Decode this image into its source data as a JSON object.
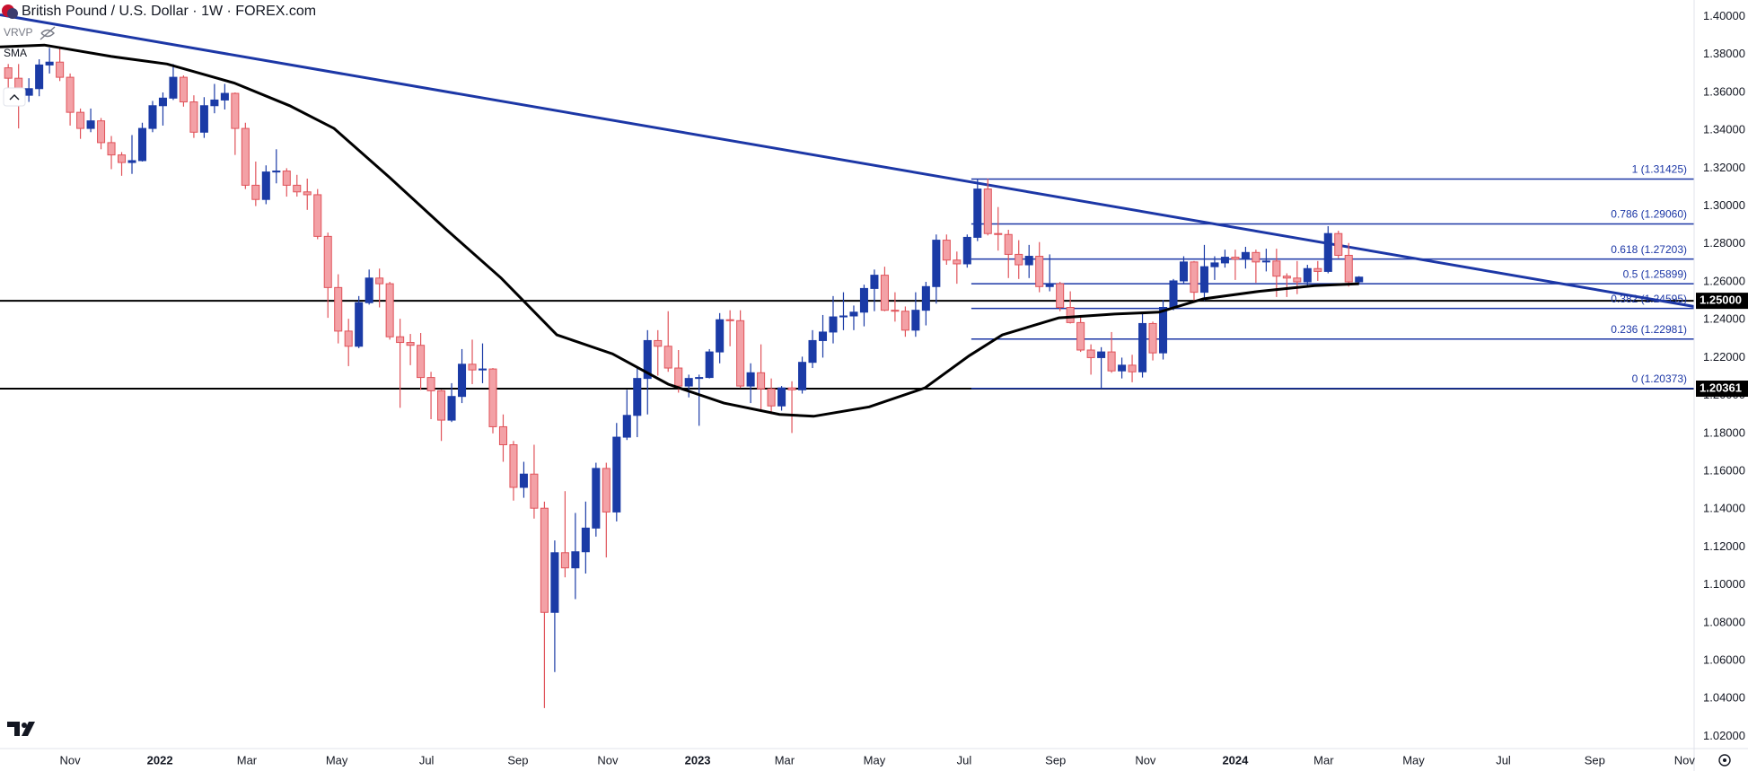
{
  "chart_data": {
    "type": "candlestick",
    "title": "British Pound / U.S. Dollar · 1W · FOREX.com",
    "vrvp_label": "VRVP",
    "up_color": "#1b3ba6",
    "down_color": "#f3a1a6",
    "down_border": "#e0535a",
    "candles": [
      [
        1.373,
        1.375,
        1.361,
        1.3675
      ],
      [
        1.3675,
        1.375,
        1.341,
        1.3585
      ],
      [
        1.3585,
        1.3675,
        1.355,
        1.362
      ],
      [
        1.362,
        1.3775,
        1.358,
        1.3745
      ],
      [
        1.3745,
        1.3835,
        1.37,
        1.376
      ],
      [
        1.376,
        1.383,
        1.366,
        1.368
      ],
      [
        1.368,
        1.37,
        1.3425,
        1.3495
      ],
      [
        1.3495,
        1.3515,
        1.3355,
        1.341
      ],
      [
        1.341,
        1.3515,
        1.339,
        1.345
      ],
      [
        1.345,
        1.3465,
        1.33,
        1.3335
      ],
      [
        1.3335,
        1.337,
        1.3195,
        1.327
      ],
      [
        1.327,
        1.3285,
        1.316,
        1.323
      ],
      [
        1.323,
        1.3375,
        1.317,
        1.324
      ],
      [
        1.324,
        1.344,
        1.3235,
        1.341
      ],
      [
        1.341,
        1.3555,
        1.339,
        1.353
      ],
      [
        1.353,
        1.36,
        1.3425,
        1.357
      ],
      [
        1.357,
        1.375,
        1.356,
        1.368
      ],
      [
        1.368,
        1.369,
        1.3525,
        1.355
      ],
      [
        1.355,
        1.3585,
        1.336,
        1.339
      ],
      [
        1.339,
        1.3575,
        1.336,
        1.353
      ],
      [
        1.353,
        1.3645,
        1.349,
        1.356
      ],
      [
        1.356,
        1.3645,
        1.351,
        1.3595
      ],
      [
        1.3595,
        1.36,
        1.327,
        1.341
      ],
      [
        1.341,
        1.344,
        1.309,
        1.311
      ],
      [
        1.311,
        1.3235,
        1.3,
        1.3035
      ],
      [
        1.3035,
        1.3215,
        1.301,
        1.318
      ],
      [
        1.318,
        1.33,
        1.312,
        1.3185
      ],
      [
        1.3185,
        1.32,
        1.305,
        1.311
      ],
      [
        1.311,
        1.3165,
        1.305,
        1.3075
      ],
      [
        1.3075,
        1.3145,
        1.298,
        1.306
      ],
      [
        1.306,
        1.309,
        1.2825,
        1.284
      ],
      [
        1.284,
        1.286,
        1.241,
        1.257
      ],
      [
        1.257,
        1.264,
        1.2275,
        1.234
      ],
      [
        1.234,
        1.2405,
        1.2155,
        1.226
      ],
      [
        1.226,
        1.2525,
        1.225,
        1.249
      ],
      [
        1.249,
        1.2665,
        1.248,
        1.262
      ],
      [
        1.262,
        1.267,
        1.2465,
        1.259
      ],
      [
        1.259,
        1.26,
        1.2295,
        1.231
      ],
      [
        1.231,
        1.2405,
        1.1935,
        1.228
      ],
      [
        1.228,
        1.2325,
        1.216,
        1.2265
      ],
      [
        1.2265,
        1.233,
        1.203,
        1.2095
      ],
      [
        1.2095,
        1.2125,
        1.1875,
        1.2025
      ],
      [
        1.2025,
        1.203,
        1.176,
        1.187
      ],
      [
        1.187,
        1.2065,
        1.186,
        1.1995
      ],
      [
        1.1995,
        1.2245,
        1.196,
        1.2165
      ],
      [
        1.2165,
        1.2295,
        1.206,
        1.2135
      ],
      [
        1.2135,
        1.2275,
        1.2065,
        1.214
      ],
      [
        1.214,
        1.2145,
        1.18,
        1.1835
      ],
      [
        1.1835,
        1.19,
        1.165,
        1.174
      ],
      [
        1.174,
        1.176,
        1.1445,
        1.1515
      ],
      [
        1.1515,
        1.165,
        1.146,
        1.1585
      ],
      [
        1.1585,
        1.174,
        1.135,
        1.1405
      ],
      [
        1.1405,
        1.144,
        1.035,
        1.0855
      ],
      [
        1.0855,
        1.1235,
        1.054,
        1.117
      ],
      [
        1.117,
        1.1495,
        1.104,
        1.109
      ],
      [
        1.109,
        1.138,
        1.0925,
        1.1175
      ],
      [
        1.1175,
        1.144,
        1.106,
        1.13
      ],
      [
        1.13,
        1.1645,
        1.1255,
        1.1615
      ],
      [
        1.1615,
        1.1645,
        1.1145,
        1.1385
      ],
      [
        1.1385,
        1.1855,
        1.1335,
        1.178
      ],
      [
        1.178,
        1.203,
        1.1765,
        1.1895
      ],
      [
        1.1895,
        1.2155,
        1.178,
        1.209
      ],
      [
        1.209,
        1.2345,
        1.19,
        1.229
      ],
      [
        1.229,
        1.2345,
        1.2105,
        1.226
      ],
      [
        1.226,
        1.2445,
        1.2125,
        1.2145
      ],
      [
        1.2145,
        1.224,
        1.2015,
        1.205
      ],
      [
        1.205,
        1.211,
        1.199,
        1.209
      ],
      [
        1.209,
        1.211,
        1.184,
        1.2095
      ],
      [
        1.2095,
        1.2245,
        1.209,
        1.223
      ],
      [
        1.223,
        1.2435,
        1.217,
        1.24
      ],
      [
        1.24,
        1.245,
        1.226,
        1.2395
      ],
      [
        1.2395,
        1.245,
        1.204,
        1.205
      ],
      [
        1.205,
        1.217,
        1.196,
        1.212
      ],
      [
        1.212,
        1.227,
        1.1915,
        1.2035
      ],
      [
        1.2035,
        1.209,
        1.1915,
        1.1945
      ],
      [
        1.1945,
        1.205,
        1.192,
        1.204
      ],
      [
        1.204,
        1.2075,
        1.1802,
        1.203
      ],
      [
        1.203,
        1.2205,
        1.201,
        1.2175
      ],
      [
        1.2175,
        1.2345,
        1.2145,
        1.229
      ],
      [
        1.229,
        1.2425,
        1.22,
        1.2335
      ],
      [
        1.2335,
        1.2525,
        1.2275,
        1.2415
      ],
      [
        1.2415,
        1.2545,
        1.2345,
        1.242
      ],
      [
        1.242,
        1.2475,
        1.2345,
        1.244
      ],
      [
        1.244,
        1.2585,
        1.2365,
        1.2565
      ],
      [
        1.2565,
        1.2665,
        1.2445,
        1.2635
      ],
      [
        1.2635,
        1.268,
        1.2445,
        1.245
      ],
      [
        1.245,
        1.2545,
        1.239,
        1.2445
      ],
      [
        1.2445,
        1.247,
        1.231,
        1.2345
      ],
      [
        1.2345,
        1.2545,
        1.231,
        1.245
      ],
      [
        1.245,
        1.26,
        1.237,
        1.2575
      ],
      [
        1.2575,
        1.285,
        1.2485,
        1.282
      ],
      [
        1.282,
        1.285,
        1.269,
        1.2715
      ],
      [
        1.2715,
        1.276,
        1.259,
        1.2695
      ],
      [
        1.2695,
        1.285,
        1.2675,
        1.2835
      ],
      [
        1.2835,
        1.3142,
        1.2815,
        1.309
      ],
      [
        1.309,
        1.3145,
        1.2845,
        1.2855
      ],
      [
        1.2855,
        1.2995,
        1.2765,
        1.285
      ],
      [
        1.285,
        1.2875,
        1.262,
        1.2745
      ],
      [
        1.2745,
        1.282,
        1.2615,
        1.269
      ],
      [
        1.269,
        1.2795,
        1.262,
        1.2735
      ],
      [
        1.2735,
        1.281,
        1.2545,
        1.2575
      ],
      [
        1.2575,
        1.2745,
        1.255,
        1.259
      ],
      [
        1.259,
        1.26,
        1.2445,
        1.2465
      ],
      [
        1.2465,
        1.255,
        1.238,
        1.2385
      ],
      [
        1.2385,
        1.2425,
        1.223,
        1.224
      ],
      [
        1.224,
        1.227,
        1.211,
        1.22
      ],
      [
        1.22,
        1.2255,
        1.2037,
        1.223
      ],
      [
        1.223,
        1.2335,
        1.212,
        1.213
      ],
      [
        1.213,
        1.22,
        1.209,
        1.216
      ],
      [
        1.216,
        1.2215,
        1.207,
        1.2125
      ],
      [
        1.2125,
        1.243,
        1.2095,
        1.238
      ],
      [
        1.238,
        1.239,
        1.2185,
        1.2225
      ],
      [
        1.2225,
        1.2505,
        1.219,
        1.2465
      ],
      [
        1.2465,
        1.2615,
        1.245,
        1.2605
      ],
      [
        1.2605,
        1.2735,
        1.259,
        1.2705
      ],
      [
        1.2705,
        1.271,
        1.25,
        1.2545
      ],
      [
        1.2545,
        1.2795,
        1.25,
        1.268
      ],
      [
        1.268,
        1.2735,
        1.261,
        1.27
      ],
      [
        1.27,
        1.277,
        1.2675,
        1.273
      ],
      [
        1.273,
        1.277,
        1.261,
        1.272
      ],
      [
        1.272,
        1.2785,
        1.267,
        1.2755
      ],
      [
        1.2755,
        1.277,
        1.2595,
        1.2705
      ],
      [
        1.2705,
        1.2775,
        1.2655,
        1.271
      ],
      [
        1.271,
        1.2775,
        1.252,
        1.263
      ],
      [
        1.263,
        1.2645,
        1.252,
        1.262
      ],
      [
        1.262,
        1.271,
        1.2535,
        1.26
      ],
      [
        1.26,
        1.269,
        1.2575,
        1.267
      ],
      [
        1.267,
        1.271,
        1.2605,
        1.2655
      ],
      [
        1.2655,
        1.2894,
        1.2645,
        1.2855
      ],
      [
        1.2855,
        1.287,
        1.2725,
        1.274
      ],
      [
        1.274,
        1.2805,
        1.2575,
        1.26
      ],
      [
        1.26,
        1.263,
        1.259,
        1.2625
      ]
    ],
    "sma": {
      "name": "SMA",
      "color": "#000000",
      "x": [
        -0.8,
        3.5,
        10.0,
        15.4,
        21.9,
        27.3,
        31.6,
        37.0,
        42.4,
        47.8,
        53.2,
        58.6,
        64.0,
        69.4,
        74.8,
        78.1,
        83.5,
        88.9,
        93.2,
        96.4,
        101.9,
        107.3,
        111.6,
        115.9,
        121.3,
        126.7,
        131.0
      ],
      "values": [
        1.384,
        1.385,
        1.379,
        1.375,
        1.365,
        1.353,
        1.341,
        1.315,
        1.288,
        1.262,
        1.232,
        1.222,
        1.206,
        1.196,
        1.19,
        1.189,
        1.194,
        1.204,
        1.221,
        1.232,
        1.241,
        1.243,
        1.244,
        1.251,
        1.255,
        1.258,
        1.259
      ]
    },
    "trendline": {
      "color": "#1c37a6",
      "x": [
        -0.8,
        163.5
      ],
      "values": [
        1.401,
        1.247
      ]
    },
    "fib_color": "#1c37a6",
    "fib_start_x": 93.4,
    "fib_levels": [
      {
        "value": 1.31425,
        "label": "1 (1.31425)"
      },
      {
        "value": 1.2906,
        "label": "0.786 (1.29060)"
      },
      {
        "value": 1.27203,
        "label": "0.618 (1.27203)"
      },
      {
        "value": 1.25899,
        "label": "0.5 (1.25899)"
      },
      {
        "value": 1.24595,
        "label": "0.382 (1.24595)"
      },
      {
        "value": 1.22981,
        "label": "0.236 (1.22981)"
      },
      {
        "value": 1.20373,
        "label": "0 (1.20373)"
      }
    ],
    "hlines": [
      {
        "value": 1.25,
        "label": "1.25000"
      },
      {
        "value": 1.20361,
        "label": "1.20361"
      }
    ],
    "xlim": [
      -0.8,
      163.5
    ],
    "ylim": [
      1.0136,
      1.4088
    ],
    "xticks": [
      {
        "value": 6.0,
        "label": "Nov"
      },
      {
        "value": 14.71,
        "label": "2022"
      },
      {
        "value": 23.14,
        "label": "Mar"
      },
      {
        "value": 31.86,
        "label": "May"
      },
      {
        "value": 40.57,
        "label": "Jul"
      },
      {
        "value": 49.43,
        "label": "Sep"
      },
      {
        "value": 58.14,
        "label": "Nov"
      },
      {
        "value": 66.86,
        "label": "2023"
      },
      {
        "value": 75.29,
        "label": "Mar"
      },
      {
        "value": 84.0,
        "label": "May"
      },
      {
        "value": 92.71,
        "label": "Jul"
      },
      {
        "value": 101.57,
        "label": "Sep"
      },
      {
        "value": 110.29,
        "label": "Nov"
      },
      {
        "value": 119.0,
        "label": "2024"
      },
      {
        "value": 127.57,
        "label": "Mar"
      },
      {
        "value": 136.29,
        "label": "May"
      },
      {
        "value": 145.0,
        "label": "Jul"
      },
      {
        "value": 153.86,
        "label": "Sep"
      },
      {
        "value": 162.57,
        "label": "Nov"
      }
    ],
    "yticks": [
      {
        "value": 1.02,
        "label": "1.02000"
      },
      {
        "value": 1.04,
        "label": "1.04000"
      },
      {
        "value": 1.06,
        "label": "1.06000"
      },
      {
        "value": 1.08,
        "label": "1.08000"
      },
      {
        "value": 1.1,
        "label": "1.10000"
      },
      {
        "value": 1.12,
        "label": "1.12000"
      },
      {
        "value": 1.14,
        "label": "1.14000"
      },
      {
        "value": 1.16,
        "label": "1.16000"
      },
      {
        "value": 1.18,
        "label": "1.18000"
      },
      {
        "value": 1.2,
        "label": "1.20000"
      },
      {
        "value": 1.22,
        "label": "1.22000"
      },
      {
        "value": 1.24,
        "label": "1.24000"
      },
      {
        "value": 1.26,
        "label": "1.26000"
      },
      {
        "value": 1.28,
        "label": "1.28000"
      },
      {
        "value": 1.3,
        "label": "1.30000"
      },
      {
        "value": 1.32,
        "label": "1.32000"
      },
      {
        "value": 1.34,
        "label": "1.34000"
      },
      {
        "value": 1.36,
        "label": "1.36000"
      },
      {
        "value": 1.38,
        "label": "1.38000"
      },
      {
        "value": 1.4,
        "label": "1.40000"
      }
    ],
    "grid": false
  }
}
